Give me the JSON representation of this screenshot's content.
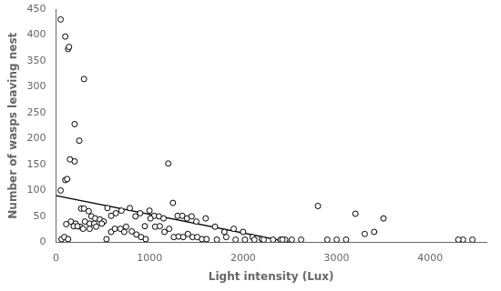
{
  "chart_data": {
    "type": "scatter",
    "xlabel": "Light intensity (Lux)",
    "ylabel": "Number of wasps leaving nest",
    "xlim": [
      0,
      4600
    ],
    "ylim": [
      0,
      450
    ],
    "xticks": [
      0,
      1000,
      2000,
      3000,
      4000
    ],
    "yticks": [
      0,
      50,
      100,
      150,
      200,
      250,
      300,
      350,
      400,
      450
    ],
    "grid": false,
    "series": [
      {
        "type": "scatter",
        "color": "black",
        "marker": "open_circle",
        "x": [
          50,
          100,
          130,
          140,
          200,
          250,
          300,
          50,
          100,
          120,
          150,
          200,
          270,
          300,
          350,
          380,
          420,
          470,
          510,
          550,
          590,
          640,
          700,
          750,
          790,
          850,
          900,
          950,
          1000,
          1050,
          1100,
          1150,
          1200,
          1250,
          1300,
          1350,
          1400,
          1450,
          1500,
          1600,
          1700,
          1800,
          1900,
          2000,
          2100,
          2200,
          2400,
          2450,
          2800,
          3000,
          3200,
          3400,
          3500,
          4350,
          60,
          110,
          160,
          210,
          260,
          310,
          360,
          410,
          90,
          130,
          190,
          230,
          290,
          360,
          430,
          490,
          540,
          590,
          630,
          690,
          730,
          810,
          860,
          910,
          960,
          1010,
          1060,
          1110,
          1160,
          1210,
          1260,
          1310,
          1360,
          1410,
          1460,
          1510,
          1560,
          1610,
          1720,
          1820,
          1920,
          2020,
          2120,
          2220,
          2320,
          2420,
          2520,
          2620,
          2900,
          3100,
          3300,
          4300,
          4450
        ],
        "values": [
          430,
          397,
          373,
          377,
          228,
          196,
          315,
          100,
          120,
          122,
          160,
          156,
          65,
          65,
          60,
          50,
          46,
          44,
          40,
          66,
          51,
          56,
          61,
          30,
          66,
          50,
          56,
          31,
          61,
          51,
          50,
          46,
          152,
          76,
          51,
          51,
          46,
          50,
          40,
          46,
          30,
          20,
          26,
          20,
          10,
          6,
          5,
          5,
          70,
          5,
          55,
          20,
          46,
          5,
          6,
          35,
          40,
          36,
          30,
          40,
          36,
          36,
          10,
          6,
          31,
          31,
          26,
          26,
          30,
          36,
          6,
          20,
          26,
          26,
          20,
          21,
          15,
          10,
          6,
          46,
          30,
          31,
          20,
          26,
          10,
          11,
          10,
          16,
          10,
          10,
          6,
          6,
          5,
          10,
          5,
          5,
          5,
          5,
          5,
          5,
          5,
          5,
          5,
          5,
          16,
          5,
          5
        ]
      },
      {
        "type": "line",
        "color": "black",
        "x": [
          0,
          2500
        ],
        "values": [
          90,
          0
        ]
      }
    ]
  }
}
